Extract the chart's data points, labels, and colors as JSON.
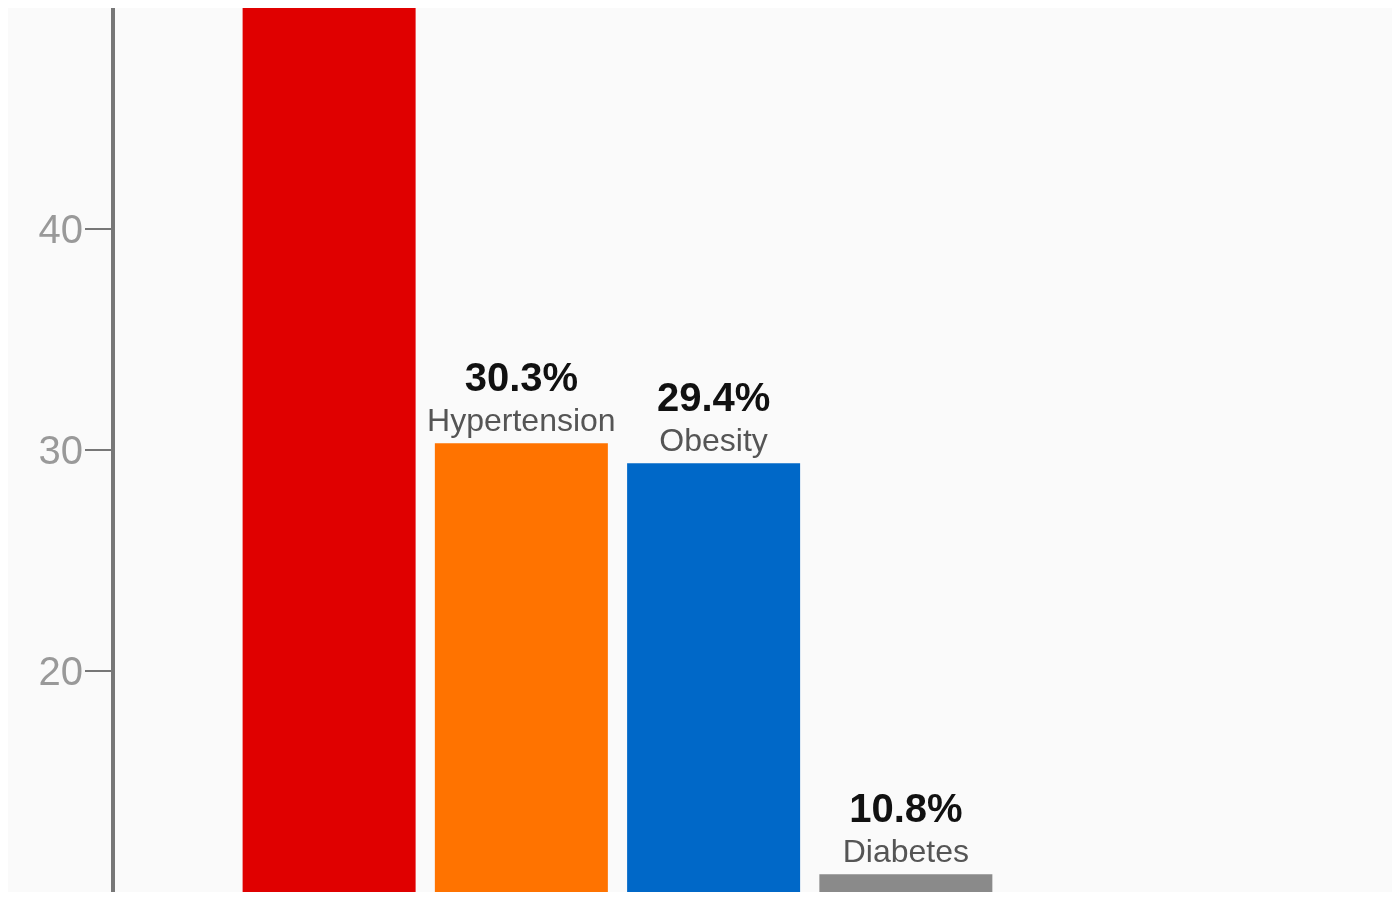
{
  "chart_data": {
    "type": "bar",
    "categories": [
      null,
      "Hypertension",
      "Obesity",
      "Diabetes"
    ],
    "values": [
      50,
      30.3,
      29.4,
      10.8
    ],
    "colors": [
      "#e00000",
      "#ff7300",
      "#0068c8",
      "#8a8a8a"
    ],
    "value_labels": [
      null,
      "30.3%",
      "29.4%",
      "10.8%"
    ],
    "ylim": [
      10,
      50
    ],
    "yticks": [
      20,
      30,
      40
    ],
    "tick_labels": "y"
  }
}
